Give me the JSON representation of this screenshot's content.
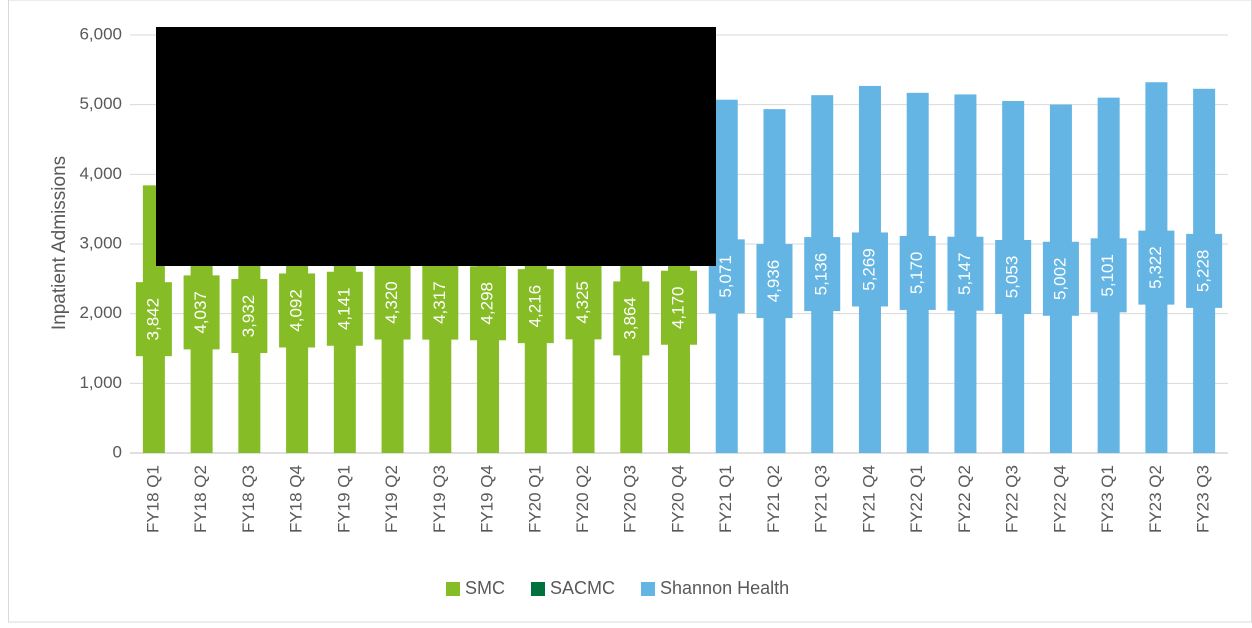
{
  "chart_data": {
    "type": "bar",
    "y_label": "Inpatient Admissions",
    "categories": [
      "FY18 Q1",
      "FY18 Q2",
      "FY18 Q3",
      "FY18 Q4",
      "FY19 Q1",
      "FY19 Q2",
      "FY19 Q3",
      "FY19 Q4",
      "FY20 Q1",
      "FY20 Q2",
      "FY20 Q3",
      "FY20 Q4",
      "FY21 Q1",
      "FY21 Q2",
      "FY21 Q3",
      "FY21 Q4",
      "FY22 Q1",
      "FY22 Q2",
      "FY22 Q3",
      "FY22 Q4",
      "FY23 Q1",
      "FY23 Q2",
      "FY23 Q3"
    ],
    "series": [
      {
        "name": "SMC",
        "color": "#86bc25",
        "values": [
          3842,
          4037,
          3932,
          4092,
          4141,
          4320,
          4317,
          4298,
          4216,
          4325,
          3864,
          4170,
          null,
          null,
          null,
          null,
          null,
          null,
          null,
          null,
          null,
          null,
          null
        ],
        "value_labels": [
          "3,842",
          "4,037",
          "3,932",
          "4,092",
          "4,141",
          "4,320",
          "4,317",
          "4,298",
          "4,216",
          "4,325",
          "3,864",
          "4,170",
          null,
          null,
          null,
          null,
          null,
          null,
          null,
          null,
          null,
          null,
          null
        ]
      },
      {
        "name": "SACMC",
        "color": "#00703c",
        "values": [
          null,
          null,
          null,
          null,
          null,
          null,
          null,
          null,
          null,
          null,
          null,
          null,
          null,
          null,
          null,
          null,
          null,
          null,
          null,
          null,
          null,
          null,
          null
        ]
      },
      {
        "name": "Shannon Health",
        "color": "#64b4e4",
        "values": [
          null,
          null,
          null,
          null,
          null,
          null,
          null,
          null,
          null,
          null,
          null,
          null,
          5071,
          4936,
          5136,
          5269,
          5170,
          5147,
          5053,
          5002,
          5101,
          5322,
          5228
        ],
        "value_labels": [
          null,
          null,
          null,
          null,
          null,
          null,
          null,
          null,
          null,
          null,
          null,
          null,
          "5,071",
          "4,936",
          "5,136",
          "5,269",
          "5,170",
          "5,147",
          "5,053",
          "5,002",
          "5,101",
          "5,322",
          "5,228"
        ]
      }
    ],
    "ylim": [
      0,
      6000
    ],
    "yticks": [
      0,
      {
        "value": 1000,
        "label": "1,000"
      },
      {
        "value": 2000,
        "label": "2,000"
      },
      {
        "value": 3000,
        "label": "3,000"
      },
      {
        "value": 4000,
        "label": "4,000"
      },
      {
        "value": 5000,
        "label": "5,000"
      },
      {
        "value": 6000,
        "label": "6,000"
      }
    ],
    "grid": true,
    "legend": "bottom"
  }
}
